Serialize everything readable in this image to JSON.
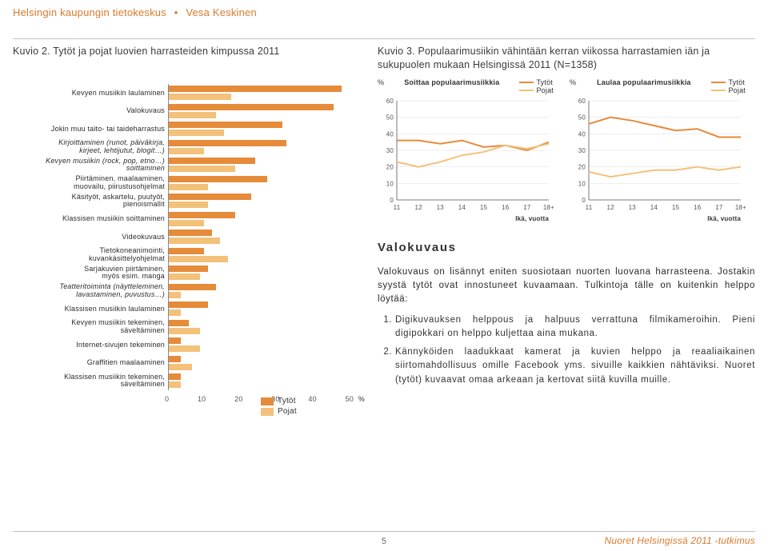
{
  "colors": {
    "accent": "#d97a2e",
    "girls": "#e58b3a",
    "boys": "#f3c17a",
    "axis": "#888888",
    "grid": "#dcdcdc",
    "text": "#2a2a2a",
    "title": "#3a3a3a"
  },
  "header": {
    "left": "Helsingin kaupungin tietokeskus",
    "right": "Vesa Keskinen",
    "bullet": "•"
  },
  "footer": {
    "page": "5",
    "right": "Nuoret Helsingissä 2011 -tutkimus"
  },
  "kuvio2": {
    "title": "Kuvio 2. Tytöt ja pojat luovien harrasteiden kimpussa 2011",
    "legend_girls": "Tytöt",
    "legend_boys": "Pojat",
    "x_ticks": [
      "0",
      "10",
      "20",
      "30",
      "40",
      "50"
    ],
    "x_unit": "%",
    "x_max": 50,
    "bar_font_size": 9,
    "label_font_size": 9,
    "bar_colors": {
      "girls": "#e58b3a",
      "boys": "#f3c17a"
    },
    "items": [
      {
        "label": "Kevyen musiikin laulaminen",
        "girls": 44,
        "boys": 16
      },
      {
        "label": "Valokuvaus",
        "girls": 42,
        "boys": 12
      },
      {
        "label": "Jokin muu taito- tai taideharrastus",
        "girls": 29,
        "boys": 14
      },
      {
        "label": "Kirjoittaminen (runot, päiväkirja,\nkirjeet, lehtijutut, blogit…)",
        "girls": 30,
        "boys": 9
      },
      {
        "label": "Kevyen musiikin (rock, pop, etno…)\nsoittaminen",
        "girls": 22,
        "boys": 17
      },
      {
        "label": "Piirtäminen, maalaaminen,\nmuovailu, piirustusohjelmat",
        "girls": 25,
        "boys": 10
      },
      {
        "label": "Käsityöt, askartelu, puutyöt,\npienoismallit",
        "girls": 21,
        "boys": 10
      },
      {
        "label": "Klassisen musiikin soittaminen",
        "girls": 17,
        "boys": 9
      },
      {
        "label": "Videokuvaus",
        "girls": 11,
        "boys": 13
      },
      {
        "label": "Tietokoneanimointi,\nkuvankäsittelyohjelmat",
        "girls": 9,
        "boys": 15
      },
      {
        "label": "Sarjakuvien piirtäminen,\nmyös esim. manga",
        "girls": 10,
        "boys": 8
      },
      {
        "label": "Teatteritoiminta (näytteleminen,\nlavastaminen, puvustus…)",
        "girls": 12,
        "boys": 3
      },
      {
        "label": "Klassisen musiikin laulaminen",
        "girls": 10,
        "boys": 3
      },
      {
        "label": "Kevyen musiikin tekeminen,\nsäveltäminen",
        "girls": 5,
        "boys": 8
      },
      {
        "label": "Internet-sivujen tekeminen",
        "girls": 3,
        "boys": 8
      },
      {
        "label": "Graffitien maalaaminen",
        "girls": 3,
        "boys": 6
      },
      {
        "label": "Klassisen musiikin tekeminen,\nsäveltäminen",
        "girls": 3,
        "boys": 3
      }
    ]
  },
  "kuvio3": {
    "title": "Kuvio 3. Populaarimusiikin vähintään kerran viikossa harrastamien iän ja sukupuolen mukaan Helsingissä 2011 (N=1358)",
    "y_unit": "%",
    "legend_girls": "Tytöt",
    "legend_boys": "Pojat",
    "age_label": "Ikä, vuotta",
    "ages": [
      "11",
      "12",
      "13",
      "14",
      "15",
      "16",
      "17",
      "18+"
    ],
    "y_ticks": [
      0,
      10,
      20,
      30,
      40,
      50,
      60
    ],
    "y_max": 60,
    "line_colors": {
      "girls": "#e58b3a",
      "boys": "#f3c17a"
    },
    "grid_color": "#dcdcdc",
    "background_color": "#ffffff",
    "line_width": 2,
    "panels": [
      {
        "title": "Soittaa populaarimusiikkia",
        "girls": [
          36,
          36,
          34,
          36,
          32,
          33,
          30,
          35
        ],
        "boys": [
          23,
          20,
          23,
          27,
          29,
          33,
          31,
          34
        ]
      },
      {
        "title": "Laulaa populaarimusiikkia",
        "girls": [
          46,
          50,
          48,
          45,
          42,
          43,
          38,
          38
        ],
        "boys": [
          17,
          14,
          16,
          18,
          18,
          20,
          18,
          20
        ]
      }
    ]
  },
  "body": {
    "heading": "Valokuvaus",
    "para": "Valokuvaus on lisännyt eniten suosiotaan nuorten luovana harrasteena. Jostakin syystä tytöt ovat innostuneet kuvaamaan. Tulkintoja tälle on kuitenkin helppo löytää:",
    "list": [
      "Digikuvauksen helppous ja halpuus verrattuna filmikameroihin. Pieni digipokkari on helppo kuljettaa aina mukana.",
      "Kännyköiden laadukkaat kamerat ja kuvien helppo ja reaaliaikainen siirtomahdollisuus omille Facebook yms. sivuille kaikkien nähtäviksi. Nuoret (tytöt) kuvaavat omaa arkeaan ja kertovat siitä kuvilla muille."
    ]
  }
}
